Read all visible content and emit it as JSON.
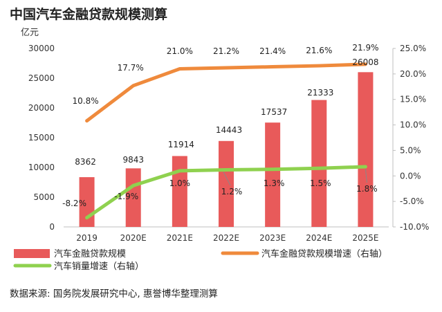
{
  "chart_data": {
    "type": "bar",
    "title": "中国汽车金融贷款规模测算",
    "unit_left": "亿元",
    "categories": [
      "2019",
      "2020E",
      "2021E",
      "2022E",
      "2023E",
      "2024E",
      "2025E"
    ],
    "series": [
      {
        "name": "汽车金融贷款规模",
        "type": "bar",
        "axis": "left",
        "color": "#e85a5a",
        "values": [
          8362,
          9843,
          11914,
          14443,
          17537,
          21333,
          26008
        ],
        "labels": [
          "8362",
          "9843",
          "11914",
          "14443",
          "17537",
          "21333",
          "26008"
        ]
      },
      {
        "name": "汽车金融贷款规模增速（右轴）",
        "type": "line",
        "axis": "right",
        "color": "#ef8a3c",
        "values": [
          10.8,
          17.7,
          21.0,
          21.2,
          21.4,
          21.6,
          21.9
        ],
        "labels": [
          "10.8%",
          "17.7%",
          "21.0%",
          "21.2%",
          "21.4%",
          "21.6%",
          "21.9%"
        ]
      },
      {
        "name": "汽车销量增速（右轴）",
        "type": "line",
        "axis": "right",
        "color": "#8fd14f",
        "values": [
          -8.2,
          -1.9,
          1.0,
          1.2,
          1.3,
          1.5,
          1.8
        ],
        "labels": [
          "-8.2%",
          "-1.9%",
          "1.0%",
          "1.2%",
          "1.3%",
          "1.5%",
          "1.8%"
        ]
      }
    ],
    "y_left": {
      "lim": [
        0,
        30000
      ],
      "ticks": [
        0,
        5000,
        10000,
        15000,
        20000,
        25000,
        30000
      ],
      "tick_labels": [
        "0",
        "5000",
        "10000",
        "15000",
        "20000",
        "25000",
        "30000"
      ]
    },
    "y_right": {
      "lim": [
        -10,
        25
      ],
      "ticks": [
        -10,
        -5,
        0,
        5,
        10,
        15,
        20,
        25
      ],
      "tick_labels": [
        "-10.0%",
        "-5.0%",
        "0.0%",
        "5.0%",
        "10.0%",
        "15.0%",
        "20.0%",
        "25.0%"
      ]
    },
    "grid": false,
    "legend_position": "bottom"
  },
  "source": "数据来源: 国务院发展研究中心, 惠誉博华整理测算"
}
